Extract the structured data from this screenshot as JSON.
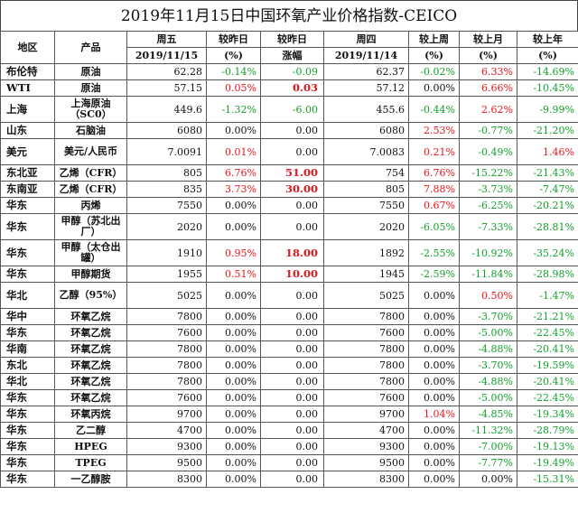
{
  "title": "2019年11月15日中国环氧产业价格指数-CEICO",
  "header": {
    "region": "地区",
    "product": "产品",
    "fri": "周五",
    "fri_date": "2019/11/15",
    "vs_prev_day": "较昨日",
    "vs_prev_day_unit": "(%)",
    "vs_prev_day2": "较昨日",
    "vs_prev_day2_unit": "涨幅",
    "thu": "周四",
    "thu_date": "2019/11/14",
    "vs_last_week": "较上周",
    "vs_last_week_unit": "(%)",
    "vs_last_month": "较上月",
    "vs_last_month_unit": "(%)",
    "vs_last_year": "较上年",
    "vs_last_year_unit": "(%)"
  },
  "rows": [
    {
      "region": "布伦特",
      "product": "原油",
      "fri": "62.28",
      "dpct": "-0.14%",
      "dchg": "-0.09",
      "thu": "62.37",
      "wk": "-0.02%",
      "mo": "6.33%",
      "yr": "-14.69%"
    },
    {
      "region": "WTI",
      "product": "原油",
      "fri": "57.15",
      "dpct": "0.05%",
      "dchg": "0.03",
      "thu": "57.12",
      "wk": "0.00%",
      "mo": "6.66%",
      "yr": "-10.45%"
    },
    {
      "region": "上海",
      "product": "上海原油（SC0）",
      "fri": "449.6",
      "dpct": "-1.32%",
      "dchg": "-6.00",
      "thu": "455.6",
      "wk": "-0.44%",
      "mo": "2.62%",
      "yr": "-9.99%"
    },
    {
      "region": "山东",
      "product": "石脑油",
      "fri": "6080",
      "dpct": "0.00%",
      "dchg": "0.00",
      "thu": "6080",
      "wk": "2.53%",
      "mo": "-0.77%",
      "yr": "-21.20%"
    },
    {
      "region": "美元",
      "product": "美元/人民币",
      "fri": "7.0091",
      "dpct": "0.01%",
      "dchg": "0.00",
      "thu": "7.0083",
      "wk": "0.21%",
      "mo": "-0.49%",
      "yr": "1.46%"
    },
    {
      "region": "东北亚",
      "product": "乙烯（CFR）",
      "fri": "805",
      "dpct": "6.76%",
      "dchg": "51.00",
      "thu": "754",
      "wk": "6.76%",
      "mo": "-15.22%",
      "yr": "-21.43%"
    },
    {
      "region": "东南亚",
      "product": "乙烯（CFR）",
      "fri": "835",
      "dpct": "3.73%",
      "dchg": "30.00",
      "thu": "805",
      "wk": "7.88%",
      "mo": "-3.73%",
      "yr": "-7.47%"
    },
    {
      "region": "华东",
      "product": "丙烯",
      "fri": "7550",
      "dpct": "0.00%",
      "dchg": "0.00",
      "thu": "7550",
      "wk": "0.67%",
      "mo": "-6.25%",
      "yr": "-20.21%"
    },
    {
      "region": "华东",
      "product": "甲醇（苏北出厂）",
      "fri": "2020",
      "dpct": "0.00%",
      "dchg": "0.00",
      "thu": "2020",
      "wk": "-6.05%",
      "mo": "-7.33%",
      "yr": "-28.81%"
    },
    {
      "region": "华东",
      "product": "甲醇（太仓出罐）",
      "fri": "1910",
      "dpct": "0.95%",
      "dchg": "18.00",
      "thu": "1892",
      "wk": "-2.55%",
      "mo": "-10.92%",
      "yr": "-35.24%"
    },
    {
      "region": "华东",
      "product": "甲醇期货",
      "fri": "1955",
      "dpct": "0.51%",
      "dchg": "10.00",
      "thu": "1945",
      "wk": "-2.59%",
      "mo": "-11.84%",
      "yr": "-28.98%"
    },
    {
      "region": "华北",
      "product": "乙醇（95%）",
      "fri": "5025",
      "dpct": "0.00%",
      "dchg": "0.00",
      "thu": "5025",
      "wk": "0.00%",
      "mo": "0.50%",
      "yr": "-1.47%"
    },
    {
      "region": "华中",
      "product": "环氧乙烷",
      "fri": "7800",
      "dpct": "0.00%",
      "dchg": "0.00",
      "thu": "7800",
      "wk": "0.00%",
      "mo": "-3.70%",
      "yr": "-21.21%"
    },
    {
      "region": "华东",
      "product": "环氧乙烷",
      "fri": "7600",
      "dpct": "0.00%",
      "dchg": "0.00",
      "thu": "7600",
      "wk": "0.00%",
      "mo": "-5.00%",
      "yr": "-22.45%"
    },
    {
      "region": "华南",
      "product": "环氧乙烷",
      "fri": "7800",
      "dpct": "0.00%",
      "dchg": "0.00",
      "thu": "7800",
      "wk": "0.00%",
      "mo": "-4.88%",
      "yr": "-20.41%"
    },
    {
      "region": "东北",
      "product": "环氧乙烷",
      "fri": "7800",
      "dpct": "0.00%",
      "dchg": "0.00",
      "thu": "7800",
      "wk": "0.00%",
      "mo": "-3.70%",
      "yr": "-19.59%"
    },
    {
      "region": "华北",
      "product": "环氧乙烷",
      "fri": "7800",
      "dpct": "0.00%",
      "dchg": "0.00",
      "thu": "7800",
      "wk": "0.00%",
      "mo": "-4.88%",
      "yr": "-20.41%"
    },
    {
      "region": "华东",
      "product": "环氧乙烷",
      "fri": "7600",
      "dpct": "0.00%",
      "dchg": "0.00",
      "thu": "7600",
      "wk": "0.00%",
      "mo": "-5.00%",
      "yr": "-22.45%"
    },
    {
      "region": "华东",
      "product": "环氧丙烷",
      "fri": "9700",
      "dpct": "0.00%",
      "dchg": "0.00",
      "thu": "9700",
      "wk": "1.04%",
      "mo": "-4.85%",
      "yr": "-19.34%"
    },
    {
      "region": "华东",
      "product": "乙二醇",
      "fri": "4700",
      "dpct": "0.00%",
      "dchg": "0.00",
      "thu": "4700",
      "wk": "0.00%",
      "mo": "-11.32%",
      "yr": "-28.79%"
    },
    {
      "region": "华东",
      "product": "HPEG",
      "fri": "9300",
      "dpct": "0.00%",
      "dchg": "0.00",
      "thu": "9300",
      "wk": "0.00%",
      "mo": "-7.00%",
      "yr": "-19.13%"
    },
    {
      "region": "华东",
      "product": "TPEG",
      "fri": "9500",
      "dpct": "0.00%",
      "dchg": "0.00",
      "thu": "9500",
      "wk": "0.00%",
      "mo": "-7.77%",
      "yr": "-19.49%"
    },
    {
      "region": "华东",
      "product": "一乙醇胺",
      "fri": "8300",
      "dpct": "0.00%",
      "dchg": "0.00",
      "thu": "8300",
      "wk": "0.00%",
      "mo": "0.00%",
      "yr": "-15.31%"
    }
  ],
  "colors": {
    "up": "#e8141b",
    "down": "#12a02c",
    "flat": "#111111"
  }
}
